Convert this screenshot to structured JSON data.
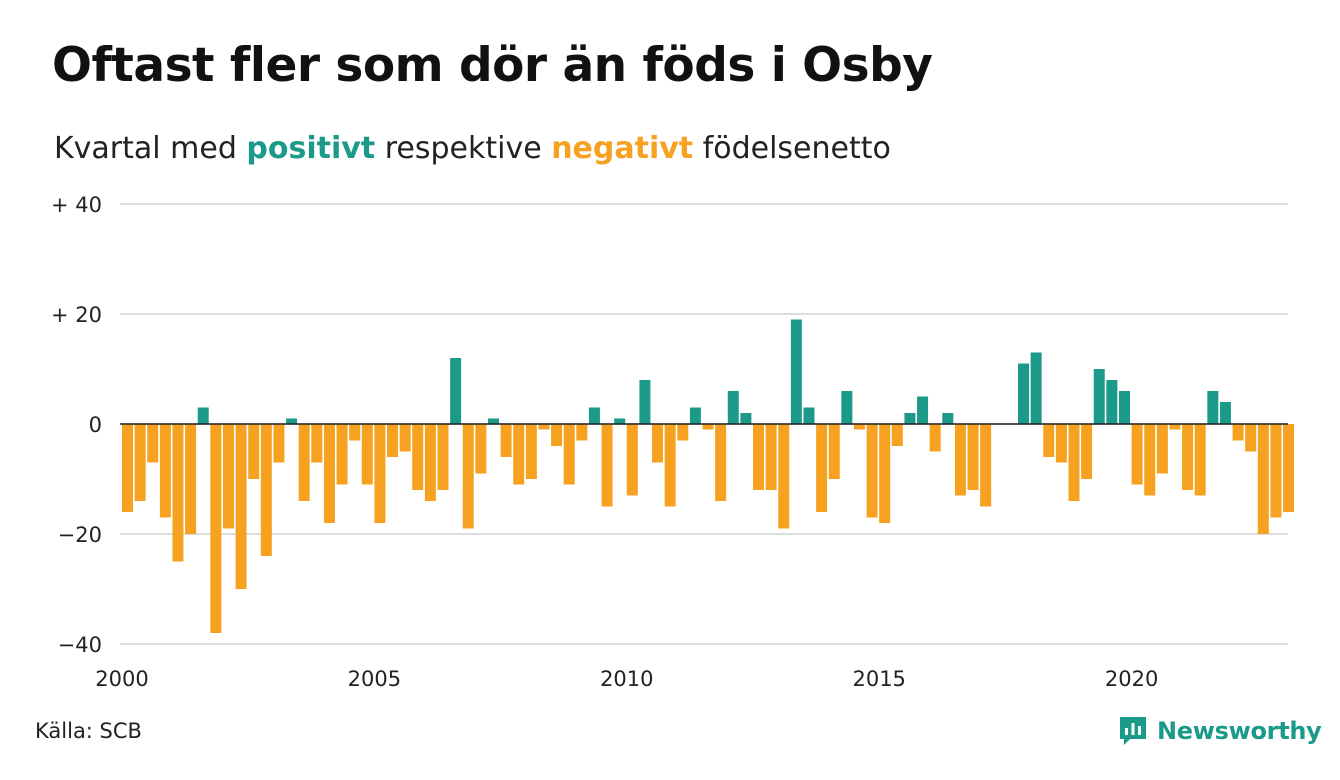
{
  "title": "Oftast fler som dör än föds i Osby",
  "subtitle": {
    "prefix": "Kvartal med ",
    "positive": "positivt",
    "middle": " respektive ",
    "negative": "negativt",
    "suffix": " födelsenetto"
  },
  "source": "Källa: SCB",
  "brand": "Newsworthy",
  "colors": {
    "positive": "#1b9a8a",
    "negative": "#f7a120",
    "grid": "#dddddd",
    "brand": "#1b9a8a"
  },
  "icons": [
    "newsworthy-logo-icon"
  ],
  "chart_data": {
    "type": "bar",
    "x_start": 2000,
    "period": "quarter",
    "ylim": [
      -40,
      40
    ],
    "yticks": [
      {
        "value": 40,
        "label": "+ 40"
      },
      {
        "value": 20,
        "label": "+ 20"
      },
      {
        "value": 0,
        "label": "0"
      },
      {
        "value": -20,
        "label": "−20"
      },
      {
        "value": -40,
        "label": "−40"
      }
    ],
    "xticks": [
      {
        "value": 2000,
        "label": "2000"
      },
      {
        "value": 2005,
        "label": "2005"
      },
      {
        "value": 2010,
        "label": "2010"
      },
      {
        "value": 2015,
        "label": "2015"
      },
      {
        "value": 2020,
        "label": "2020"
      }
    ],
    "grid": true,
    "categories": [
      "2000 K1",
      "2000 K2",
      "2000 K3",
      "2000 K4",
      "2001 K1",
      "2001 K2",
      "2001 K3",
      "2001 K4",
      "2002 K1",
      "2002 K2",
      "2002 K3",
      "2002 K4",
      "2003 K1",
      "2003 K2",
      "2003 K3",
      "2003 K4",
      "2004 K1",
      "2004 K2",
      "2004 K3",
      "2004 K4",
      "2005 K1",
      "2005 K2",
      "2005 K3",
      "2005 K4",
      "2006 K1",
      "2006 K2",
      "2006 K3",
      "2006 K4",
      "2007 K1",
      "2007 K2",
      "2007 K3",
      "2007 K4",
      "2008 K1",
      "2008 K2",
      "2008 K3",
      "2008 K4",
      "2009 K1",
      "2009 K2",
      "2009 K3",
      "2009 K4",
      "2010 K1",
      "2010 K2",
      "2010 K3",
      "2010 K4",
      "2011 K1",
      "2011 K2",
      "2011 K3",
      "2011 K4",
      "2012 K1",
      "2012 K2",
      "2012 K3",
      "2012 K4",
      "2013 K1",
      "2013 K2",
      "2013 K3",
      "2013 K4",
      "2014 K1",
      "2014 K2",
      "2014 K3",
      "2014 K4",
      "2015 K1",
      "2015 K2",
      "2015 K3",
      "2015 K4",
      "2016 K1",
      "2016 K2",
      "2016 K3",
      "2016 K4",
      "2017 K1",
      "2017 K2",
      "2017 K3",
      "2017 K4",
      "2018 K1",
      "2018 K2",
      "2018 K3",
      "2018 K4",
      "2019 K1",
      "2019 K2",
      "2019 K3",
      "2019 K4",
      "2020 K1",
      "2020 K2",
      "2020 K3",
      "2020 K4",
      "2021 K1",
      "2021 K2",
      "2021 K3",
      "2021 K4",
      "2022 K1",
      "2022 K2",
      "2022 K3",
      "2022 K4",
      "2023 K1"
    ],
    "values": [
      -16,
      -14,
      -7,
      -17,
      -25,
      -20,
      3,
      -38,
      -19,
      -30,
      -10,
      -24,
      -7,
      1,
      -14,
      -7,
      -18,
      -11,
      -3,
      -11,
      -18,
      -6,
      -5,
      -12,
      -14,
      -12,
      12,
      -19,
      -9,
      1,
      -6,
      -11,
      -10,
      -1,
      -4,
      -11,
      -3,
      3,
      -15,
      1,
      -13,
      8,
      -7,
      -15,
      -3,
      3,
      -1,
      -14,
      6,
      2,
      -12,
      -12,
      -19,
      19,
      3,
      -16,
      -10,
      6,
      -1,
      -17,
      -18,
      -4,
      2,
      5,
      -5,
      2,
      -13,
      -12,
      -15,
      0,
      0,
      11,
      13,
      -6,
      -7,
      -14,
      -10,
      10,
      8,
      6,
      -11,
      -13,
      -9,
      -1,
      -12,
      -13,
      6,
      4,
      -3,
      -5,
      -20,
      -17,
      -16
    ]
  }
}
